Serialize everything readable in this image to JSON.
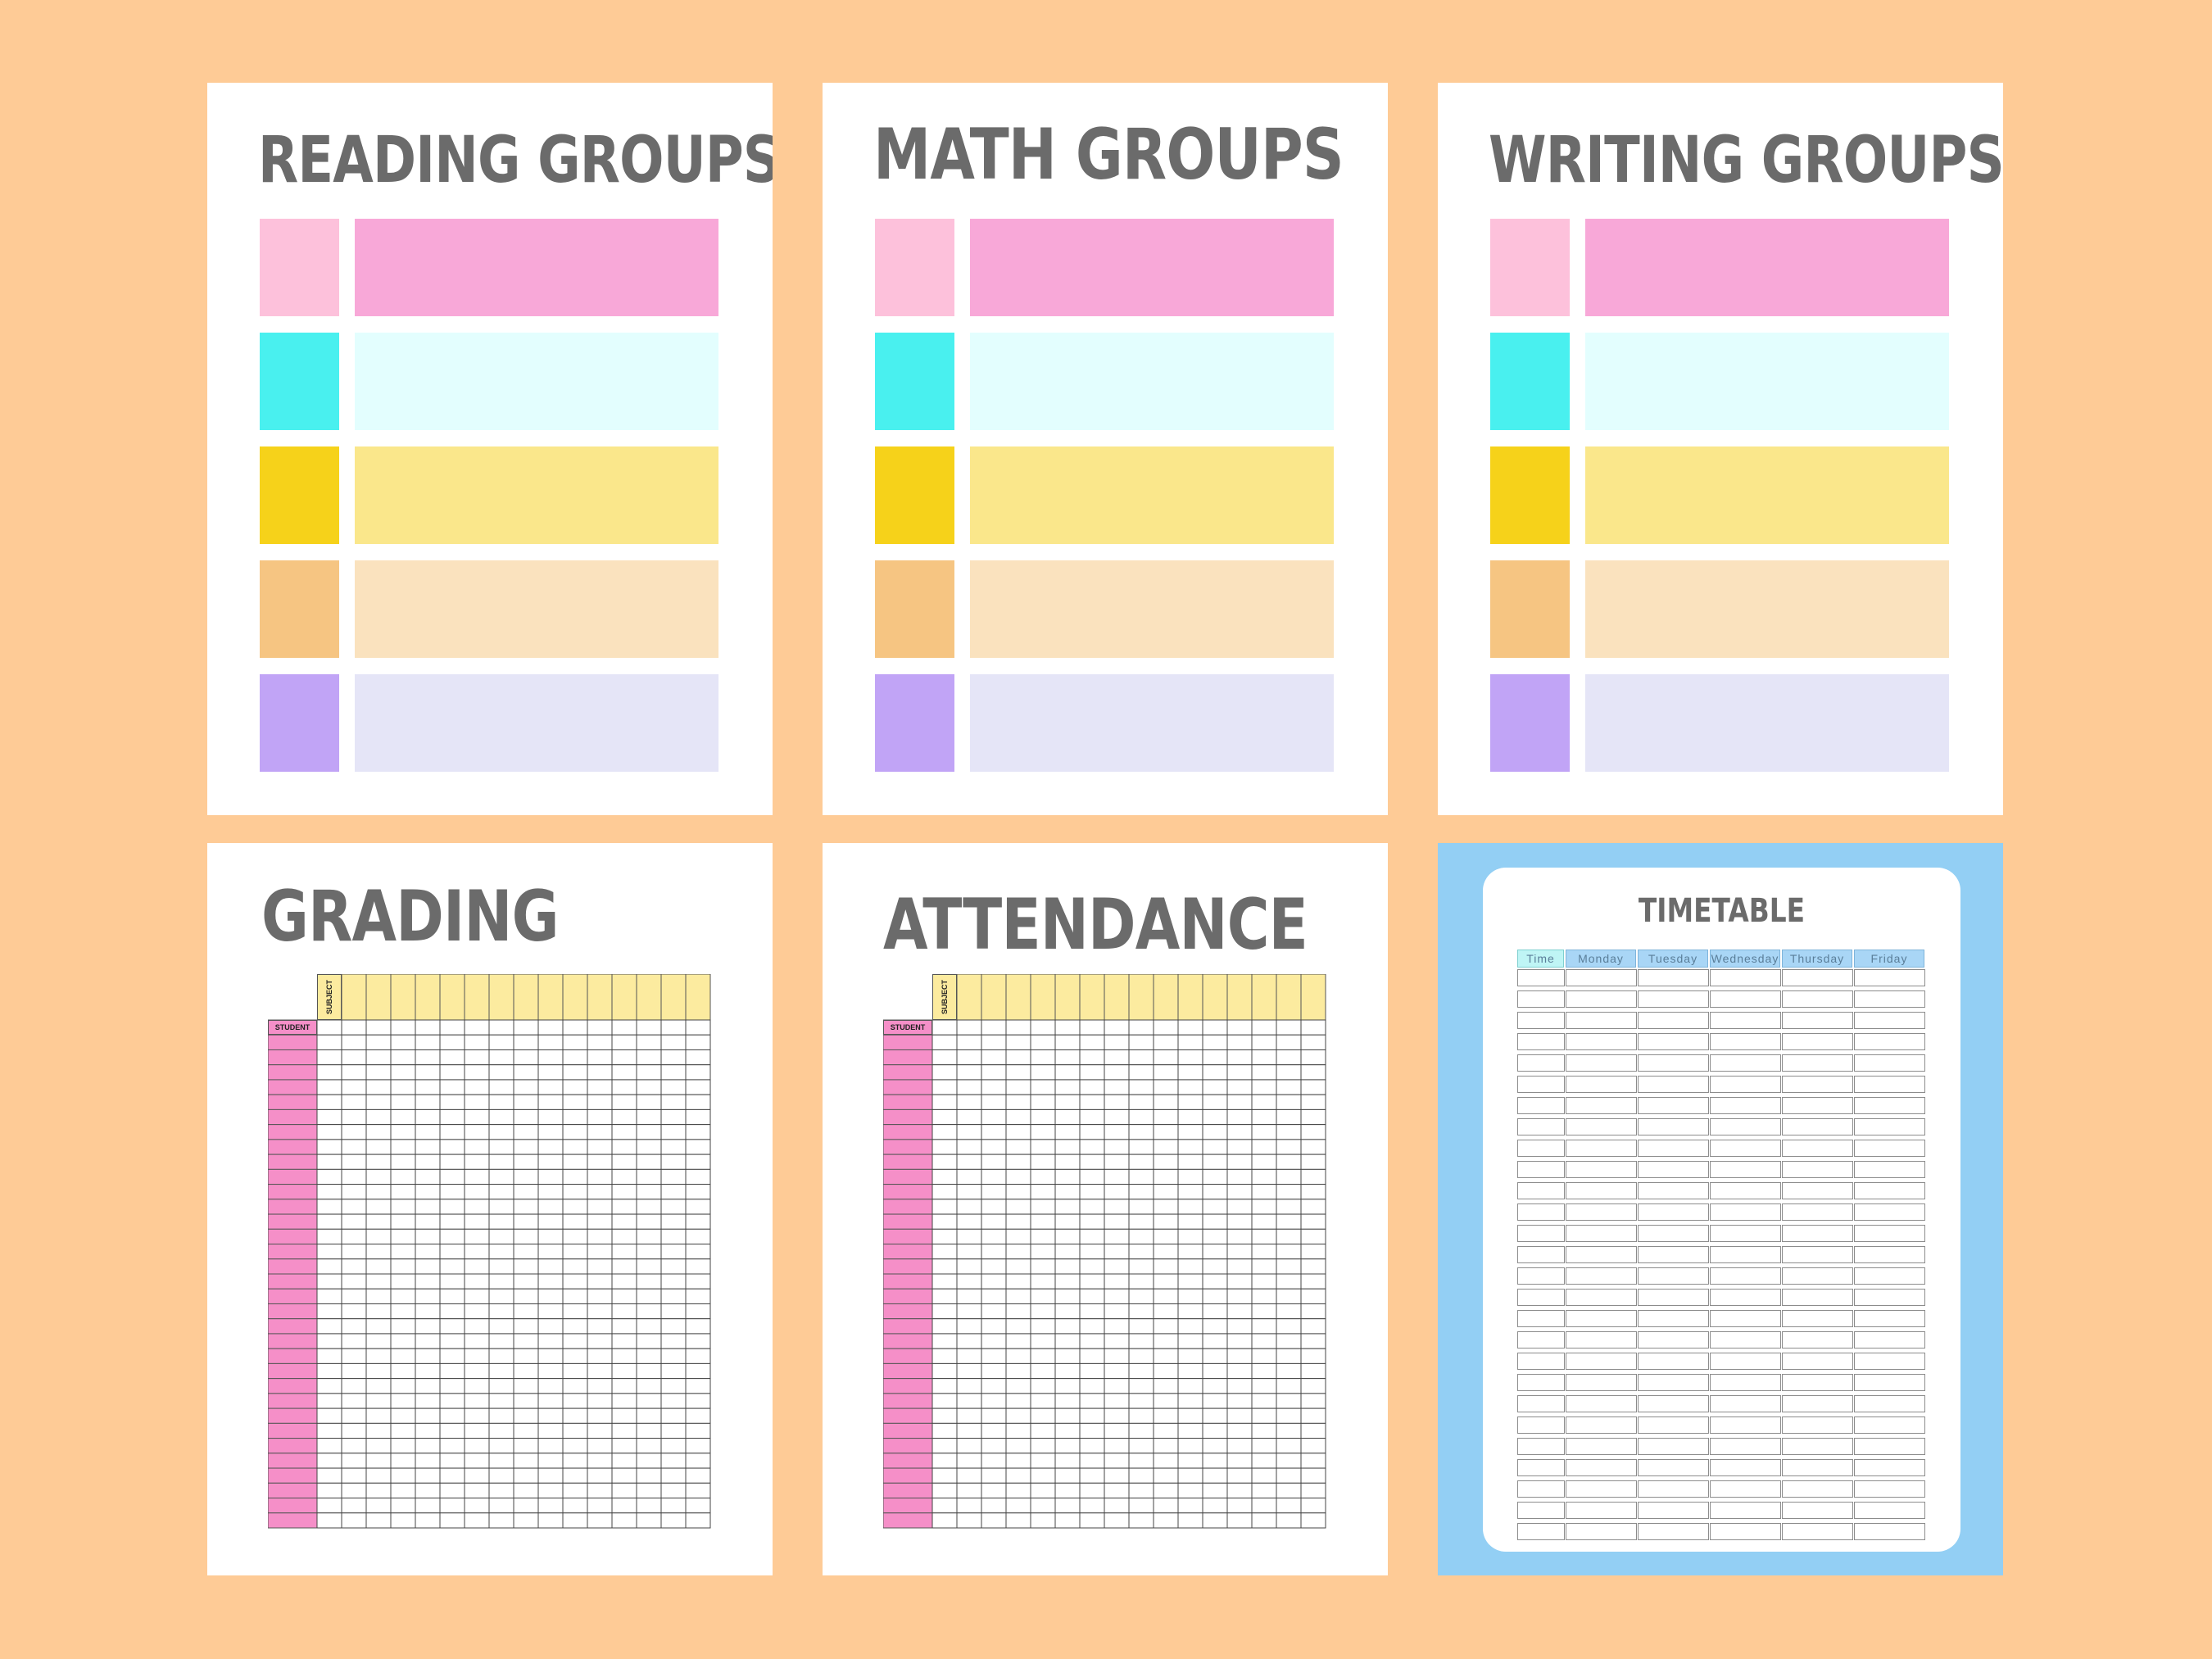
{
  "colors": {
    "background": "#FECB96",
    "title": "#6B6B6B",
    "timetable_frame": "#93CFF4",
    "swatches": [
      "#FDC1DB",
      "#49F0EF",
      "#F6D21A",
      "#F6C582",
      "#C1A4F6"
    ],
    "bars": [
      "#F8A8D8",
      "#E3FEFE",
      "#FAE78B",
      "#FAE2BE",
      "#E5E5F7"
    ],
    "grid_header": "#FCEB9F",
    "grid_student": "#F58FC8",
    "tt_time_head": "#BFF5F5",
    "tt_day_head": "#A9D6F6"
  },
  "pages": {
    "reading": {
      "title": "Reading Groups"
    },
    "math": {
      "title": "Math Groups"
    },
    "writing": {
      "title": "Writing Groups"
    },
    "grading": {
      "title": "Grading",
      "subject_label": "SUBJECT",
      "student_label": "STUDENT"
    },
    "attendance": {
      "title": "Attendance",
      "subject_label": "SUBJECT",
      "student_label": "STUDENT"
    },
    "timetable": {
      "title": "Timetable",
      "headers": [
        "Time",
        "Monday",
        "Tuesday",
        "Wednesday",
        "Thursday",
        "Friday"
      ]
    }
  }
}
